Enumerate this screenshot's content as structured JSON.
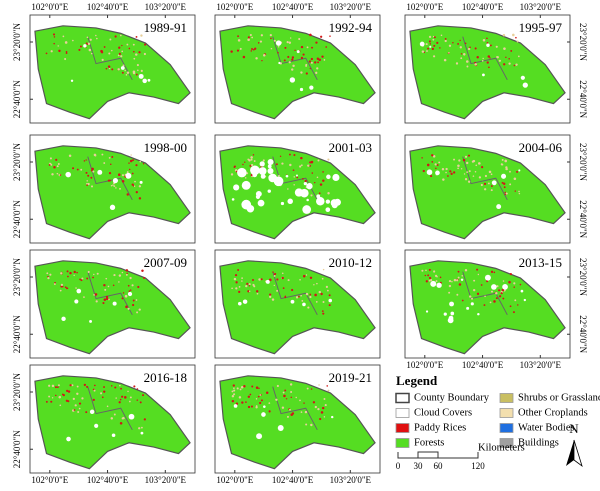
{
  "panels": [
    {
      "label": "1989-91"
    },
    {
      "label": "1992-94"
    },
    {
      "label": "1995-97"
    },
    {
      "label": "1998-00"
    },
    {
      "label": "2001-03"
    },
    {
      "label": "2004-06"
    },
    {
      "label": "2007-09"
    },
    {
      "label": "2010-12"
    },
    {
      "label": "2013-15"
    },
    {
      "label": "2016-18"
    },
    {
      "label": "2019-21"
    }
  ],
  "axis_labels": {
    "lon": [
      "102°0'0\"E",
      "102°40'0\"E",
      "103°20'0\"E"
    ],
    "lat": [
      "23°20'0\"N",
      "22°40'0\"N"
    ]
  },
  "legend": {
    "title": "Legend",
    "items": [
      {
        "label": "County Boundary",
        "color": "#ffffff"
      },
      {
        "label": "Shrubs or Grasslands",
        "color": "#c9bf62"
      },
      {
        "label": "Cloud Covers",
        "color": "#ffffff"
      },
      {
        "label": "Other Croplands",
        "color": "#f3dfae"
      },
      {
        "label": "Paddy Rices",
        "color": "#e01010"
      },
      {
        "label": "Water Bodies",
        "color": "#1f6fe0"
      },
      {
        "label": "Forests",
        "color": "#55dd22"
      },
      {
        "label": "Buildings",
        "color": "#a0a0a0"
      }
    ]
  },
  "scale_bar": {
    "ticks": [
      "0",
      "30",
      "60",
      "120"
    ],
    "unit": "Kilometers"
  },
  "north": "N"
}
